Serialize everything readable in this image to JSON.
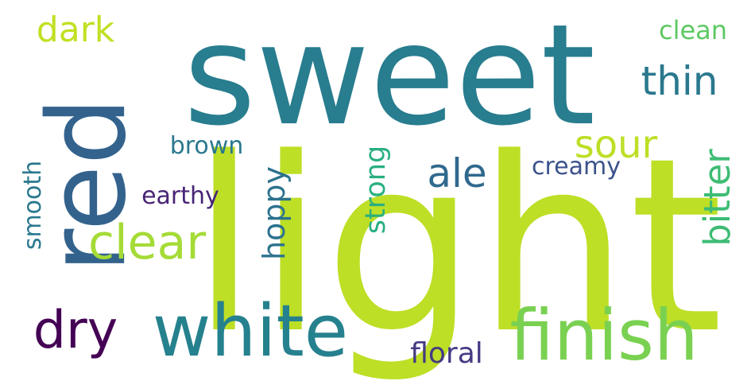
{
  "words": [
    {
      "id": "sweet",
      "text": "sweet",
      "color": "#287d8e"
    },
    {
      "id": "light",
      "text": "light",
      "color": "#bddf26"
    },
    {
      "id": "red",
      "text": "red",
      "color": "#33638d"
    },
    {
      "id": "white",
      "text": "white",
      "color": "#26818e"
    },
    {
      "id": "finish",
      "text": "finish",
      "color": "#7ad151"
    },
    {
      "id": "clear",
      "text": "clear",
      "color": "#a5db36"
    },
    {
      "id": "dark",
      "text": "dark",
      "color": "#c2df23"
    },
    {
      "id": "thin",
      "text": "thin",
      "color": "#2a788e"
    },
    {
      "id": "sour",
      "text": "sour",
      "color": "#bddf26"
    },
    {
      "id": "ale",
      "text": "ale",
      "color": "#30698e"
    },
    {
      "id": "hoppy",
      "text": "hoppy",
      "color": "#2c728e"
    },
    {
      "id": "bitter",
      "text": "bitter",
      "color": "#3dbc74"
    },
    {
      "id": "dry",
      "text": "dry",
      "color": "#440154"
    },
    {
      "id": "strong",
      "text": "strong",
      "color": "#29af7f"
    },
    {
      "id": "smooth",
      "text": "smooth",
      "color": "#2a788e"
    },
    {
      "id": "brown",
      "text": "brown",
      "color": "#2a788e"
    },
    {
      "id": "earthy",
      "text": "earthy",
      "color": "#482475"
    },
    {
      "id": "creamy",
      "text": "creamy",
      "color": "#3b528b"
    },
    {
      "id": "clean",
      "text": "clean",
      "color": "#5ec962"
    },
    {
      "id": "floral",
      "text": "floral",
      "color": "#443a83"
    }
  ]
}
